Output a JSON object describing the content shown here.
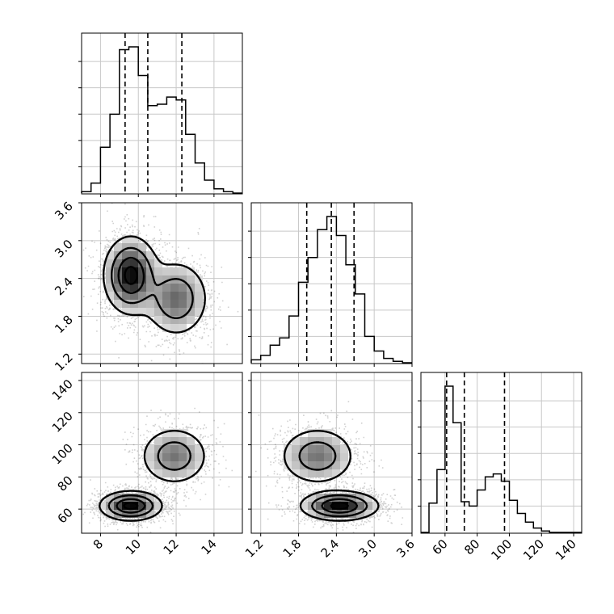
{
  "chart_data": {
    "type": "corner",
    "grid": true,
    "parameters": [
      {
        "id": "p1",
        "range": [
          7,
          15.5
        ],
        "ticks": [
          8,
          10,
          12,
          14
        ],
        "tick_labels": [
          "8",
          "10",
          "12",
          "14"
        ],
        "quantiles": [
          9.3,
          10.5,
          12.3
        ]
      },
      {
        "id": "p2",
        "range": [
          1.05,
          3.6
        ],
        "ticks": [
          1.2,
          1.8,
          2.4,
          3.0,
          3.6
        ],
        "tick_labels": [
          "1.2",
          "1.8",
          "2.4",
          "3.0",
          "3.6"
        ],
        "quantiles": [
          1.93,
          2.32,
          2.68
        ]
      },
      {
        "id": "p3",
        "range": [
          45,
          145
        ],
        "ticks": [
          60,
          80,
          100,
          120,
          140
        ],
        "tick_labels": [
          "60",
          "80",
          "100",
          "120",
          "140"
        ],
        "quantiles": [
          61,
          72,
          97
        ]
      }
    ],
    "histograms": [
      {
        "param": "p1",
        "bin_edges": [
          7.0,
          7.5,
          8.0,
          8.5,
          9.0,
          9.5,
          10.0,
          10.5,
          11.0,
          11.5,
          12.0,
          12.5,
          13.0,
          13.5,
          14.0,
          14.5,
          15.0,
          15.5
        ],
        "counts": [
          1,
          7,
          32,
          55,
          100,
          102,
          82,
          61,
          62,
          67,
          65,
          41,
          21,
          9,
          3,
          1,
          0
        ]
      },
      {
        "param": "p2",
        "bin_edges": [
          1.05,
          1.2,
          1.35,
          1.5,
          1.65,
          1.8,
          1.95,
          2.1,
          2.25,
          2.4,
          2.55,
          2.7,
          2.85,
          3.0,
          3.15,
          3.3,
          3.45,
          3.6
        ],
        "counts": [
          2,
          5,
          12,
          17,
          32,
          55,
          72,
          91,
          100,
          87,
          67,
          47,
          18,
          8,
          3,
          1,
          0
        ]
      },
      {
        "param": "p3",
        "bin_edges": [
          45,
          50,
          55,
          60,
          65,
          70,
          75,
          80,
          85,
          90,
          95,
          100,
          105,
          110,
          115,
          120,
          125,
          130,
          135,
          140,
          145
        ],
        "counts": [
          0,
          20,
          43,
          100,
          75,
          21,
          18,
          29,
          38,
          40,
          35,
          22,
          13,
          7,
          3,
          1,
          0,
          0,
          0,
          0
        ]
      }
    ],
    "joint_densities": [
      {
        "x": "p1",
        "y": "p2",
        "modes": [
          {
            "x": 9.6,
            "y": 2.45,
            "sx": 0.7,
            "sy": 0.3,
            "w": 1.0
          },
          {
            "x": 12.0,
            "y": 2.08,
            "sx": 0.85,
            "sy": 0.3,
            "w": 0.6
          }
        ]
      },
      {
        "x": "p1",
        "y": "p3",
        "modes": [
          {
            "x": 9.6,
            "y": 62,
            "sx": 0.8,
            "sy": 4.5,
            "w": 1.0
          },
          {
            "x": 11.9,
            "y": 93,
            "sx": 0.9,
            "sy": 9,
            "w": 0.55
          }
        ]
      },
      {
        "x": "p2",
        "y": "p3",
        "modes": [
          {
            "x": 2.1,
            "y": 93,
            "sx": 0.3,
            "sy": 9,
            "w": 0.55
          },
          {
            "x": 2.45,
            "y": 62,
            "sx": 0.3,
            "sy": 4.5,
            "w": 1.0
          }
        ]
      }
    ]
  }
}
